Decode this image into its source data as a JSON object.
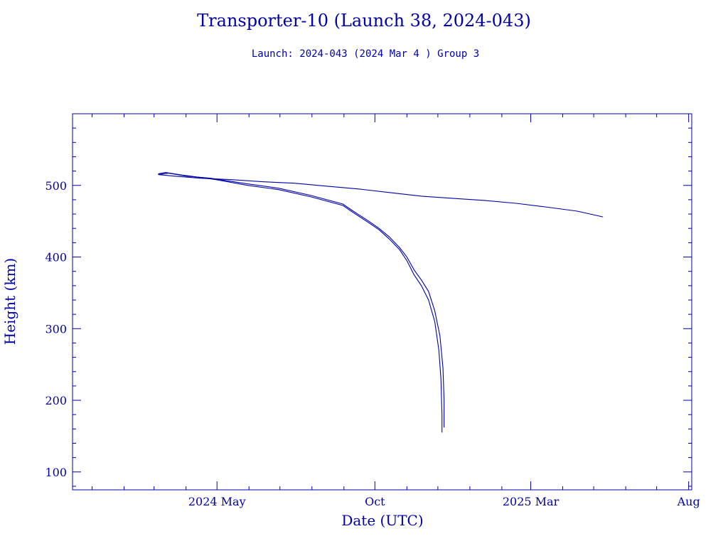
{
  "chart_data": {
    "type": "line",
    "title": "Transporter-10 (Launch 38, 2024-043)",
    "subtitle": "Launch: 2024-043  (2024 Mar  4 )  Group 3",
    "xlabel": "Date (UTC)",
    "ylabel": "Height (km)",
    "x_axis": {
      "type": "date",
      "range": [
        "2023-12-13",
        "2025-08-04"
      ],
      "ticks": [
        {
          "date": "2024-05-01",
          "label": "2024 May"
        },
        {
          "date": "2024-10-01",
          "label": "Oct"
        },
        {
          "date": "2025-03-01",
          "label": "2025 Mar"
        },
        {
          "date": "2025-08-01",
          "label": "Aug"
        }
      ],
      "minor_tick_months": 1
    },
    "y_axis": {
      "range": [
        75,
        600
      ],
      "ticks": [
        100,
        200,
        300,
        400,
        500
      ],
      "minor_step": 20
    },
    "grid": false,
    "legend": "none",
    "color": "#0000a8",
    "series": [
      {
        "points": [
          [
            "2024-03-05",
            515
          ],
          [
            "2024-03-20",
            513
          ],
          [
            "2024-04-15",
            510
          ],
          [
            "2024-05-15",
            508
          ],
          [
            "2024-06-15",
            505
          ],
          [
            "2024-07-15",
            503
          ],
          [
            "2024-08-15",
            499
          ],
          [
            "2024-09-15",
            495
          ],
          [
            "2024-10-15",
            490
          ],
          [
            "2024-11-15",
            485
          ],
          [
            "2024-12-15",
            482
          ],
          [
            "2025-01-15",
            479
          ],
          [
            "2025-02-15",
            475
          ],
          [
            "2025-03-15",
            470
          ],
          [
            "2025-04-15",
            464
          ],
          [
            "2025-05-10",
            456
          ]
        ]
      },
      {
        "points": [
          [
            "2024-03-05",
            516
          ],
          [
            "2024-03-12",
            518
          ],
          [
            "2024-03-25",
            515
          ],
          [
            "2024-04-10",
            512
          ],
          [
            "2024-04-30",
            508
          ],
          [
            "2024-05-31",
            500
          ],
          [
            "2024-06-30",
            494
          ],
          [
            "2024-07-31",
            484
          ],
          [
            "2024-08-31",
            472
          ],
          [
            "2024-09-10",
            462
          ],
          [
            "2024-09-25",
            448
          ],
          [
            "2024-10-05",
            438
          ],
          [
            "2024-10-15",
            425
          ],
          [
            "2024-10-25",
            410
          ],
          [
            "2024-11-01",
            395
          ],
          [
            "2024-11-08",
            375
          ],
          [
            "2024-11-15",
            360
          ],
          [
            "2024-11-22",
            340
          ],
          [
            "2024-11-28",
            310
          ],
          [
            "2024-12-02",
            270
          ],
          [
            "2024-12-04",
            230
          ],
          [
            "2024-12-05",
            180
          ],
          [
            "2024-12-05",
            155
          ]
        ]
      },
      {
        "points": [
          [
            "2024-03-05",
            515
          ],
          [
            "2024-03-15",
            517
          ],
          [
            "2024-04-01",
            513
          ],
          [
            "2024-04-25",
            510
          ],
          [
            "2024-05-31",
            502
          ],
          [
            "2024-06-30",
            496
          ],
          [
            "2024-07-31",
            486
          ],
          [
            "2024-08-31",
            474
          ],
          [
            "2024-09-10",
            464
          ],
          [
            "2024-09-25",
            450
          ],
          [
            "2024-10-05",
            440
          ],
          [
            "2024-10-15",
            428
          ],
          [
            "2024-10-25",
            413
          ],
          [
            "2024-11-01",
            400
          ],
          [
            "2024-11-08",
            382
          ],
          [
            "2024-11-15",
            368
          ],
          [
            "2024-11-22",
            352
          ],
          [
            "2024-11-28",
            325
          ],
          [
            "2024-12-03",
            290
          ],
          [
            "2024-12-06",
            245
          ],
          [
            "2024-12-07",
            200
          ],
          [
            "2024-12-07",
            162
          ]
        ]
      }
    ]
  }
}
